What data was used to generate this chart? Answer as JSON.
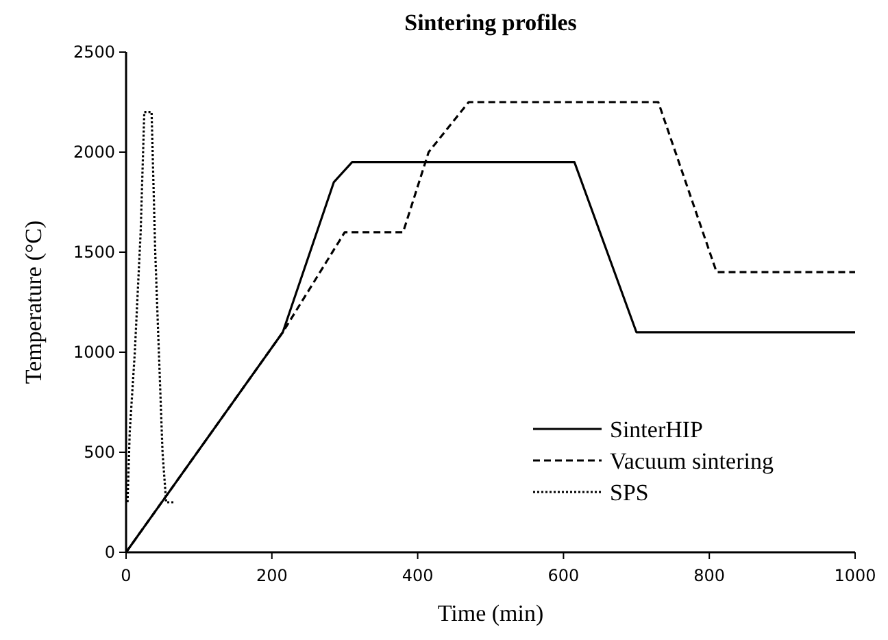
{
  "chart_data": {
    "type": "line",
    "title": "Sintering profiles",
    "xlabel": "Time  (min)",
    "ylabel": "Temperature  (°C)",
    "xlim": [
      0,
      1000
    ],
    "ylim": [
      0,
      2500
    ],
    "xticks": [
      0,
      200,
      400,
      600,
      800,
      1000
    ],
    "yticks": [
      0,
      500,
      1000,
      1500,
      2000,
      2500
    ],
    "grid": false,
    "legend": "bottom right",
    "marker": "none",
    "series": [
      {
        "name": "SinterHIP",
        "color": "#000000",
        "line_style": "solid",
        "x": [
          0,
          215,
          285,
          310,
          615,
          700,
          1000
        ],
        "values": [
          0,
          1100,
          1850,
          1950,
          1950,
          1100,
          1100
        ]
      },
      {
        "name": "Vacuum sintering",
        "color": "#000000",
        "line_style": "dashed",
        "x": [
          0,
          215,
          300,
          380,
          415,
          470,
          730,
          810,
          1000
        ],
        "values": [
          0,
          1100,
          1600,
          1600,
          2000,
          2250,
          2250,
          1400,
          1400
        ]
      },
      {
        "name": "SPS",
        "color": "#000000",
        "line_style": "dotted",
        "x": [
          2,
          5,
          12,
          20,
          25,
          35,
          40,
          45,
          50,
          55,
          65
        ],
        "values": [
          250,
          600,
          1000,
          1600,
          2200,
          2200,
          1500,
          1000,
          500,
          250,
          250
        ]
      }
    ]
  }
}
